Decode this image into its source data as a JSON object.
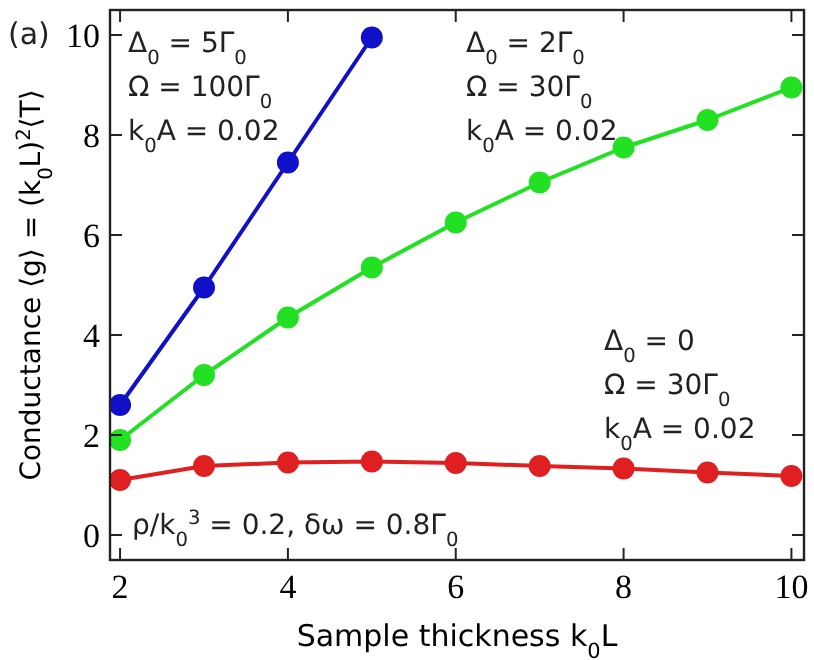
{
  "chart_data": {
    "type": "line",
    "xlabel": "Sample thickness k$_{0}$L",
    "ylabel": "Conductance ⟨g⟩ = (k$_{0}$L)$^{2}$⟨T⟩",
    "x": [
      2,
      3,
      4,
      5,
      6,
      7,
      8,
      9,
      10
    ],
    "series": [
      {
        "color": "#1010c8",
        "values": [
          2.6,
          4.95,
          7.45,
          9.95,
          null,
          null,
          null,
          null,
          null
        ]
      },
      {
        "color": "#22e022",
        "values": [
          1.9,
          3.2,
          4.35,
          5.35,
          6.25,
          7.05,
          7.75,
          8.3,
          8.95
        ]
      },
      {
        "color": "#e02020",
        "values": [
          1.1,
          1.38,
          1.45,
          1.47,
          1.44,
          1.38,
          1.33,
          1.25,
          1.18
        ]
      }
    ],
    "xlim": [
      1.88,
      10.15
    ],
    "ylim": [
      -0.5,
      10.5
    ],
    "xticks": [
      2,
      4,
      6,
      8,
      10
    ],
    "yticks": [
      0,
      2,
      4,
      6,
      8,
      10
    ],
    "marker": "circle",
    "grid": false,
    "annotations": [
      "(a)",
      "Δ$_{0}$ = 5Γ$_{0}$",
      "Ω = 100Γ$_{0}$",
      "k$_{0}$A = 0.02",
      "Δ$_{0}$ = 2Γ$_{0}$",
      "Ω = 30Γ$_{0}$",
      "k$_{0}$A = 0.02",
      "Δ$_{0}$ = 0",
      "Ω = 30Γ$_{0}$",
      "k$_{0}$A = 0.02",
      "ρ/k$_{0}$$^{3}$ = 0.2, δω = 0.8Γ$_{0}$"
    ]
  }
}
